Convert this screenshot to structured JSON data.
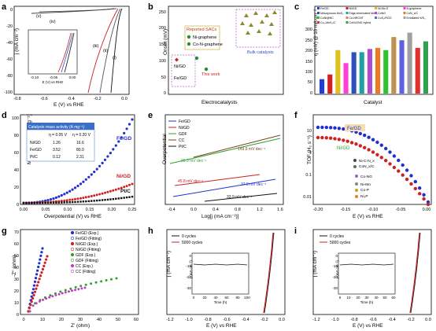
{
  "figure": {
    "panels": [
      {
        "id": "a",
        "letter": "a",
        "ylabel": "j (mA cm⁻²)",
        "xlabel": "E (V) vs RHE",
        "xticks": [
          "-0.8",
          "-0.6",
          "-0.4",
          "-0.2",
          "0.0"
        ],
        "yticks": [
          "0",
          "-20",
          "-40",
          "-60",
          "-80",
          "-100"
        ],
        "curve_labels": [
          "(v)",
          "(iv)",
          "(iii)",
          "(ii)",
          "(i)"
        ],
        "inset": {
          "xlabel": "E (V) vs RHE",
          "xticks": [
            "-0.10",
            "-0.05",
            "0.00"
          ]
        }
      },
      {
        "id": "b",
        "letter": "b",
        "ylabel": "Onset (mV)",
        "xlabel": "Electrocatalysts",
        "yticks": [
          "0",
          "50",
          "100",
          "150",
          "200",
          "250"
        ],
        "legend_title": "Reported SACs",
        "legend_items": [
          "Ni-graphene",
          "Co-N-graphene"
        ],
        "annotations": [
          "Ni/GD",
          "Fe/GD",
          "This work",
          "Bulk catalysts"
        ],
        "colors": {
          "marker": "#2e8b2e",
          "this_work": "#cc2222",
          "bulk": "#8a8a2a",
          "box": "#b060c0"
        }
      },
      {
        "id": "c",
        "letter": "c",
        "ylabel": "η (mV) @ 10 mA cm⁻²",
        "xlabel": "Catalyst",
        "yticks": [
          "0",
          "50",
          "100",
          "150",
          "200",
          "250",
          "300"
        ],
        "legend": [
          "Fe/GD",
          "Ni/GD",
          "Ni-Mo-S",
          "N-graphene",
          "Mesoporous MoS₂",
          "Edge-terminated MoS₂",
          "CoNG",
          "CoN_x/C",
          "CoNi@NC",
          "Co-NRCNT",
          "CoS₂/RGO",
          "Exfoliated WS₂",
          "Co₂-MoS₂/C",
          "CoNi-ENG hybrid"
        ],
        "colors": [
          "#1f3fcf",
          "#d02020",
          "#e0c020",
          "#ff3fd8",
          "#3050c0",
          "#20a0a0",
          "#b04ad0",
          "#f07820",
          "#30c030",
          "#c09050",
          "#6060e0",
          "#a0a0a0",
          "#e03030",
          "#30a050"
        ],
        "chart_data": {
          "type": "bar",
          "categories": [
            "Fe/GD",
            "Ni/GD",
            "Ni-Mo-S",
            "N-graphene",
            "Mesoporous MoS₂",
            "Edge-terminated MoS₂",
            "CoNG",
            "CoN_x/C",
            "CoNi@NC",
            "Co-NRCNT",
            "CoS₂/RGO",
            "Exfoliated WS₂",
            "Co₂-MoS₂/C",
            "CoNi-ENG hybrid"
          ],
          "values": [
            66,
            88,
            200,
            140,
            190,
            190,
            205,
            210,
            200,
            260,
            245,
            280,
            210,
            240
          ],
          "ylabel": "η (mV) @ 10 mA cm⁻²",
          "xlabel": "Catalyst",
          "ylim": [
            0,
            300
          ]
        }
      },
      {
        "id": "d",
        "letter": "d",
        "ylabel": "Mass activity (A mg⁻¹)",
        "xlabel": "Overpotential (V) vs RHE",
        "xticks": [
          "0.00",
          "0.05",
          "0.10",
          "0.15",
          "0.20",
          "0.25"
        ],
        "yticks": [
          "0",
          "20",
          "40",
          "60",
          "80",
          "100"
        ],
        "series_labels": [
          "Fe/GD",
          "Ni/GD",
          "Pt/C"
        ],
        "table": {
          "title": "Catalysts mass activity (A mg⁻¹)",
          "header": [
            "",
            "η = 0.05 V",
            "η = 0.20 V"
          ],
          "rows": [
            [
              "Ni/GD",
              "1.26",
              "16.6"
            ],
            [
              "Fe/GD",
              "3.52",
              "80.0"
            ],
            [
              "Pt/C",
              "0.12",
              "2.31"
            ]
          ]
        },
        "colors": {
          "fe": "#2030d0",
          "ni": "#d02020",
          "pt": "#111111"
        }
      },
      {
        "id": "e",
        "letter": "e",
        "ylabel": "Overpotential",
        "xlabel": "Log[j (mA cm⁻²)]",
        "xticks": [
          "-0.4",
          "0.0",
          "0.4",
          "0.8",
          "1.2",
          "1.6"
        ],
        "legend": [
          "Fe/GD",
          "Ni/GD",
          "GDF",
          "CC",
          "Pt/C"
        ],
        "colors": [
          "#2030d0",
          "#d02020",
          "#30a030",
          "#7a4020",
          "#111111"
        ],
        "annotations": [
          "149.9 mV dec⁻¹",
          "96.3 mV dec⁻¹",
          "45.8 mV dec⁻¹",
          "37.8 mV dec⁻¹",
          "33.9 mV dec⁻¹"
        ]
      },
      {
        "id": "f",
        "letter": "f",
        "ylabel": "TOF (H₂ s⁻¹)",
        "xlabel": "E (V) vs RHE",
        "xticks": [
          "-0.20",
          "-0.15",
          "-0.10",
          "-0.05",
          "0.00"
        ],
        "yticks": [
          "0.01",
          "0.1",
          "1",
          "10"
        ],
        "annotations": [
          "Fe/GD",
          "Ni/GD",
          "Ni-C-N_x",
          "CoN_x/C",
          "Co-NG",
          "Ni-Mo",
          "Co-P",
          "Ni₂P"
        ]
      },
      {
        "id": "g",
        "letter": "g",
        "ylabel": "-Z'' (ohm)",
        "xlabel": "Z' (ohm)",
        "xticks": [
          "0",
          "10",
          "20",
          "30",
          "40",
          "50",
          "60"
        ],
        "yticks": [
          "0",
          "10",
          "20",
          "30",
          "40",
          "50",
          "60",
          "70"
        ],
        "legend": [
          "Fe/GD (Exp.)",
          "Fe/GD (Fitting)",
          "Ni/GD (Exp.)",
          "Ni/GD (Fitting)",
          "GDF (Exp.)",
          "GDF (Fitting)",
          "CC (Exp.)",
          "CC (Fitting)"
        ]
      },
      {
        "id": "h",
        "letter": "h",
        "ylabel": "j (mA cm⁻²)",
        "xlabel": "E (V) vs RHE",
        "xticks": [
          "-1.2",
          "-1.0",
          "-0.8",
          "-0.6",
          "-0.4",
          "-0.2",
          "0.0"
        ],
        "legend": [
          "0 cycles",
          "5000 cycles"
        ],
        "inset": {
          "ylabel": "j (mA cm⁻²)",
          "xlabel": "Time (h)",
          "xticks": [
            "0",
            "20",
            "40",
            "60",
            "80",
            "100"
          ],
          "yticks": [
            "0",
            "-10",
            "-20",
            "-30"
          ]
        }
      },
      {
        "id": "i",
        "letter": "i",
        "ylabel": "j (mA cm⁻²)",
        "xlabel": "E (V) vs RHE",
        "xticks": [
          "-1.2",
          "-1.0",
          "-0.8",
          "-0.6",
          "-0.4",
          "-0.2",
          "0.0"
        ],
        "legend": [
          "0 cycles",
          "5000 cycles"
        ],
        "inset": {
          "ylabel": "j (mA cm⁻²)",
          "xlabel": "Time (h)",
          "xticks": [
            "0",
            "10",
            "20",
            "30",
            "40",
            "50",
            "60"
          ],
          "yticks": [
            "0",
            "-10",
            "-20",
            "-30"
          ]
        }
      }
    ]
  }
}
